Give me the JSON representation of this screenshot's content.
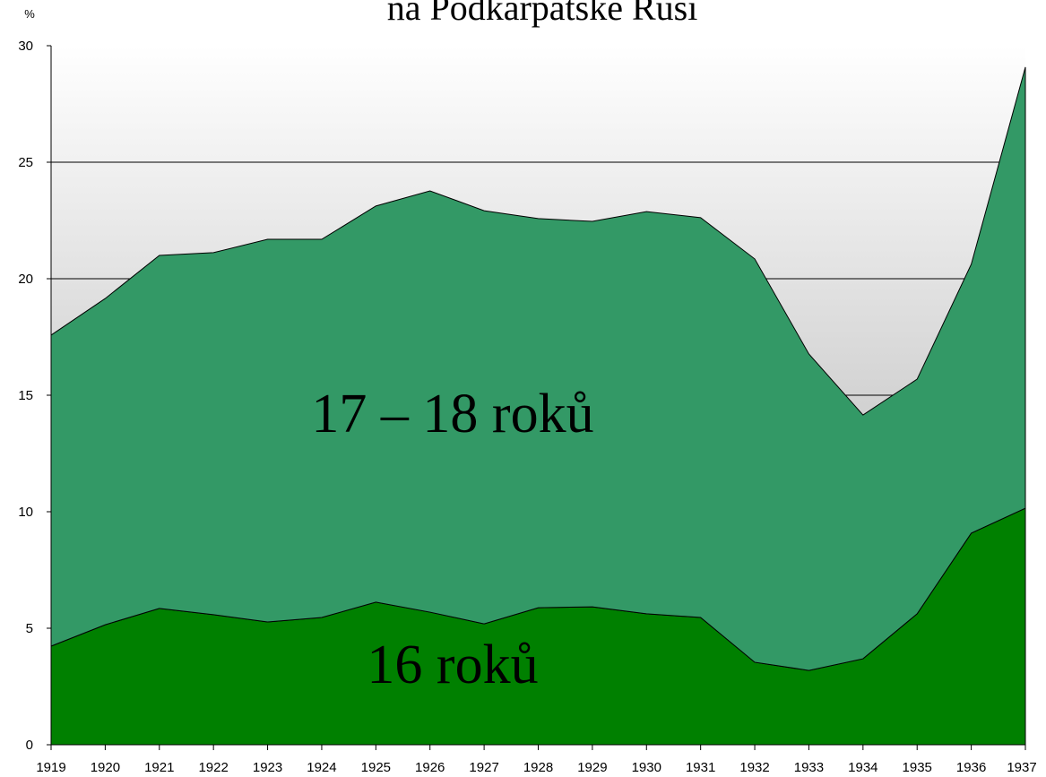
{
  "chart_data": {
    "type": "stacked_area",
    "title": "na Podkarpatské Rusi",
    "y_label": "%",
    "categories": [
      "1919",
      "1920",
      "1921",
      "1922",
      "1923",
      "1924",
      "1925",
      "1926",
      "1927",
      "1928",
      "1929",
      "1930",
      "1931",
      "1932",
      "1933",
      "1934",
      "1935",
      "1936",
      "1937"
    ],
    "series": [
      {
        "name": "16 roků",
        "color": "#008000",
        "values": [
          4.23,
          5.15,
          5.85,
          5.58,
          5.27,
          5.46,
          6.12,
          5.69,
          5.19,
          5.88,
          5.92,
          5.62,
          5.46,
          3.54,
          3.19,
          3.69,
          5.62,
          9.08,
          10.15
        ]
      },
      {
        "name": "17 – 18 roků",
        "color": "#339966",
        "values": [
          13.35,
          14.0,
          15.15,
          15.54,
          16.42,
          16.23,
          17.0,
          18.08,
          17.73,
          16.7,
          16.54,
          17.26,
          17.16,
          17.31,
          13.58,
          10.46,
          10.07,
          11.54,
          18.93
        ]
      }
    ],
    "ylim": [
      0,
      30
    ],
    "yticks": [
      0,
      5,
      10,
      15,
      20,
      25,
      30
    ],
    "grid": true
  }
}
